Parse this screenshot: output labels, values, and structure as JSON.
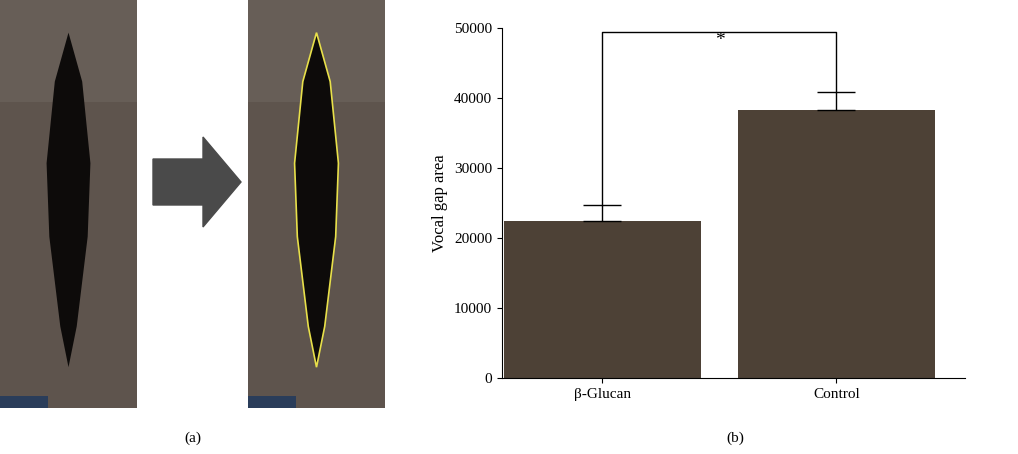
{
  "chart_data": {
    "type": "bar",
    "categories": [
      "β-Glucan",
      "Control"
    ],
    "values": [
      22500,
      38300
    ],
    "errors": [
      2200,
      2600
    ],
    "color": "#4d4136",
    "y_label": "Vocal gap area",
    "ylim": [
      0,
      50000
    ],
    "yticks": [
      0,
      10000,
      20000,
      30000,
      40000,
      50000
    ],
    "annotations": [
      "*"
    ]
  },
  "panel_labels": [
    "(a)",
    "(b)"
  ]
}
